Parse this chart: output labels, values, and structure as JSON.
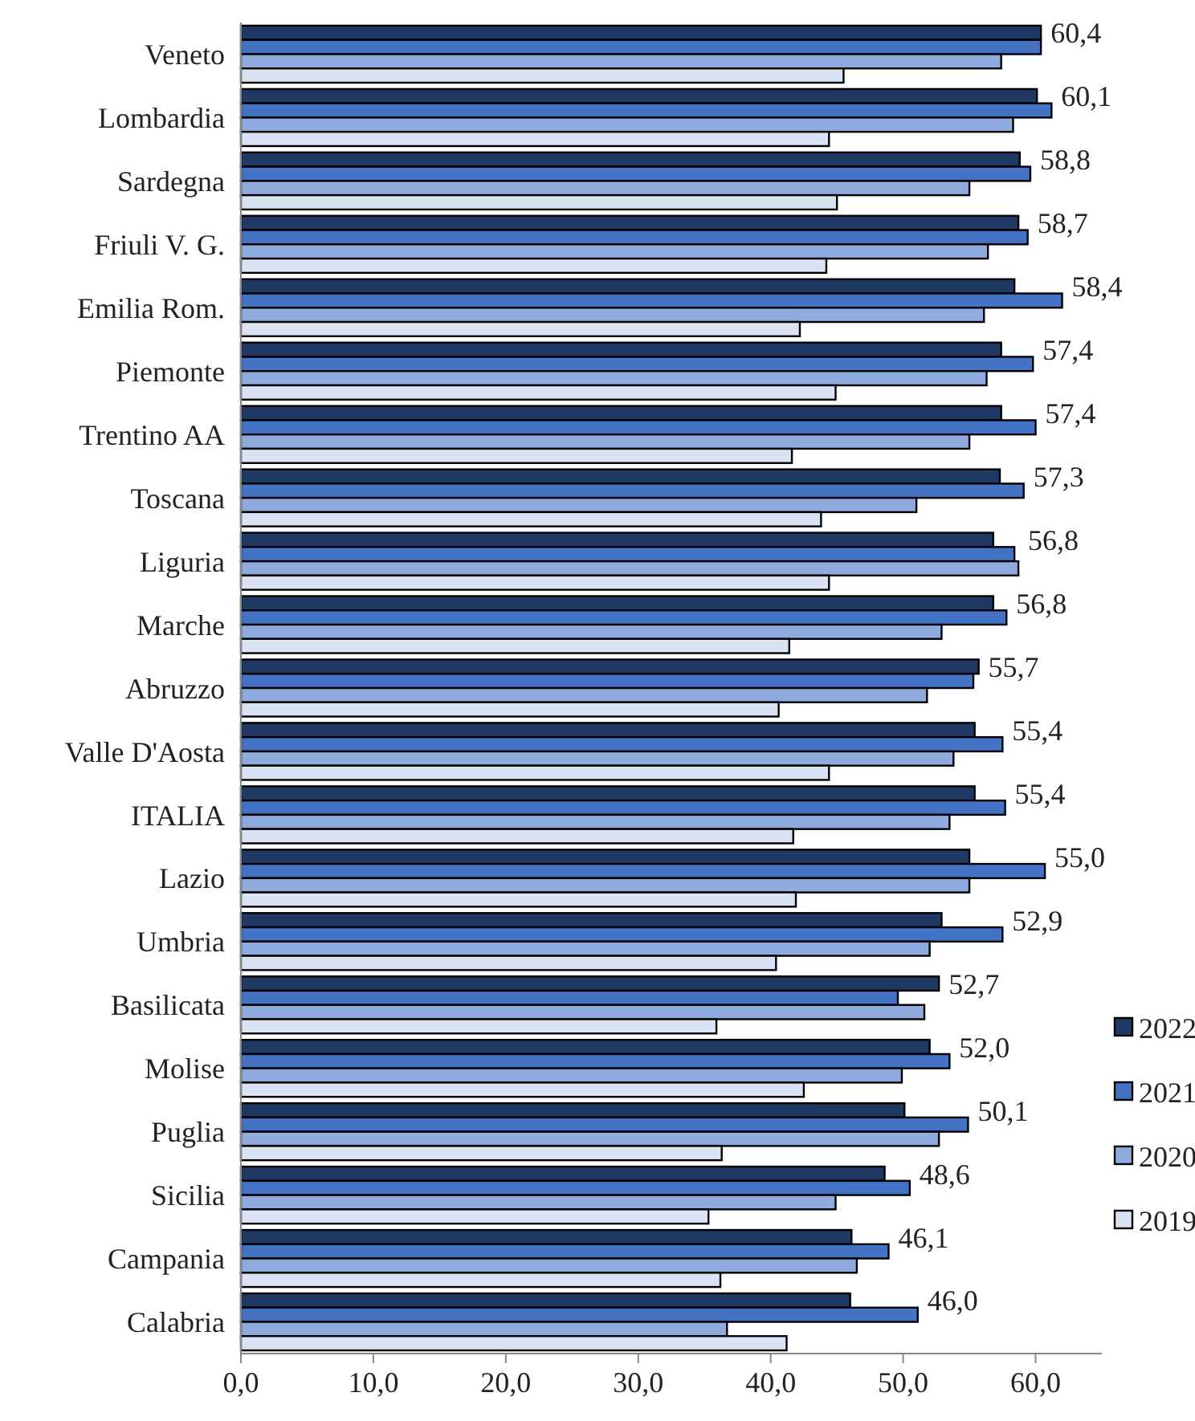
{
  "chart_data": {
    "type": "bar",
    "orientation": "horizontal",
    "categories": [
      "Veneto",
      "Lombardia",
      "Sardegna",
      "Friuli V. G.",
      "Emilia Rom.",
      "Piemonte",
      "Trentino AA",
      "Toscana",
      "Liguria",
      "Marche",
      "Abruzzo",
      "Valle D'Aosta",
      "ITALIA",
      "Lazio",
      "Umbria",
      "Basilicata",
      "Molise",
      "Puglia",
      "Sicilia",
      "Campania",
      "Calabria"
    ],
    "series": [
      {
        "name": "2022",
        "color": "#1f3864",
        "values": [
          60.4,
          60.1,
          58.8,
          58.7,
          58.4,
          57.4,
          57.4,
          57.3,
          56.8,
          56.8,
          55.7,
          55.4,
          55.4,
          55.0,
          52.9,
          52.7,
          52.0,
          50.1,
          48.6,
          46.1,
          46.0
        ],
        "value_labels": [
          "60,4",
          "60,1",
          "58,8",
          "58,7",
          "58,4",
          "57,4",
          "57,4",
          "57,3",
          "56,8",
          "56,8",
          "55,7",
          "55,4",
          "55,4",
          "55,0",
          "52,9",
          "52,7",
          "52,0",
          "50,1",
          "48,6",
          "46,1",
          "46,0"
        ]
      },
      {
        "name": "2021",
        "color": "#4472c4",
        "values": [
          60.4,
          61.2,
          59.6,
          59.4,
          62.0,
          59.8,
          60.0,
          59.1,
          58.4,
          57.8,
          55.3,
          57.5,
          57.7,
          60.7,
          57.5,
          49.6,
          53.5,
          54.9,
          50.5,
          48.9,
          51.1
        ]
      },
      {
        "name": "2020",
        "color": "#8faadc",
        "values": [
          57.4,
          58.3,
          55.0,
          56.4,
          56.1,
          56.3,
          55.0,
          51.0,
          58.7,
          52.9,
          51.8,
          53.8,
          53.5,
          55.0,
          52.0,
          51.6,
          49.9,
          52.7,
          44.9,
          46.5,
          36.7
        ]
      },
      {
        "name": "2019",
        "color": "#dae3f3",
        "values": [
          45.5,
          44.4,
          45.0,
          44.2,
          42.2,
          44.9,
          41.6,
          43.8,
          44.4,
          41.4,
          40.6,
          44.4,
          41.7,
          41.9,
          40.4,
          35.9,
          42.5,
          36.3,
          35.3,
          36.2,
          41.2
        ]
      }
    ],
    "xlim": [
      0,
      65
    ],
    "xticks": [
      {
        "value": 0,
        "label": "0,0"
      },
      {
        "value": 10,
        "label": "10,0"
      },
      {
        "value": 20,
        "label": "20,0"
      },
      {
        "value": 30,
        "label": "30,0"
      },
      {
        "value": 40,
        "label": "40,0"
      },
      {
        "value": 50,
        "label": "50,0"
      },
      {
        "value": 60,
        "label": "60,0"
      }
    ],
    "grid": false,
    "legend": "right"
  }
}
